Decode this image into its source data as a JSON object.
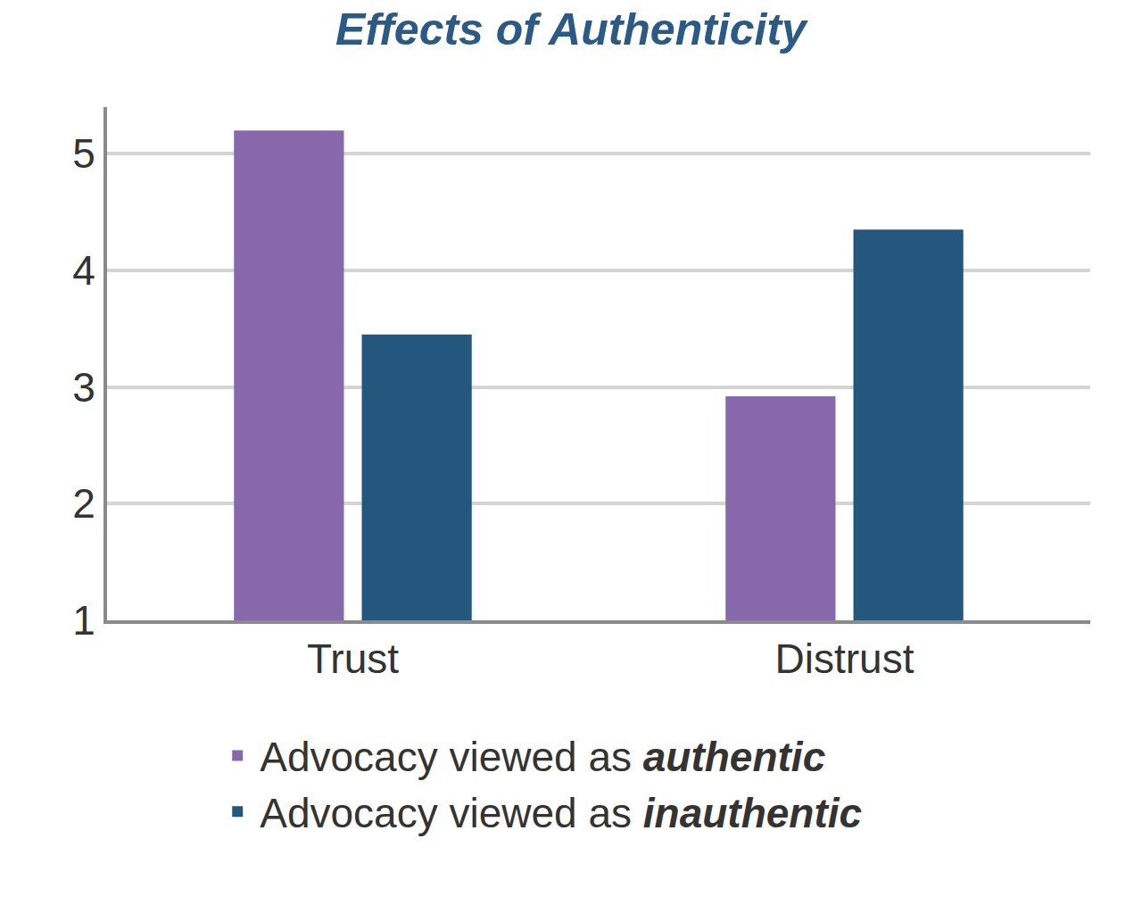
{
  "chart_data": {
    "type": "bar",
    "title": "Effects of Authenticity",
    "categories": [
      "Trust",
      "Distrust"
    ],
    "series": [
      {
        "name": "Advocacy viewed as authentic",
        "color": "#8768aa",
        "values": [
          5.2,
          2.92
        ]
      },
      {
        "name": "Advocacy viewed as inauthentic",
        "color": "#24577e",
        "values": [
          3.45,
          4.35
        ]
      }
    ],
    "ylim": [
      1,
      5.4
    ],
    "yticks": [
      1,
      2,
      3,
      4,
      5
    ],
    "grid": true,
    "legend": "bottom"
  }
}
